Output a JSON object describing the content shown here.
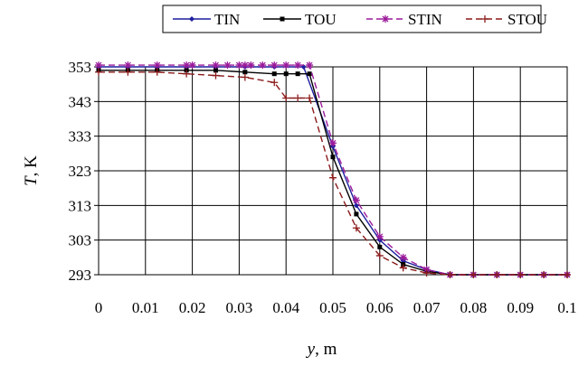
{
  "chart_data": {
    "type": "line",
    "title": "",
    "xlabel": {
      "var": "y",
      "unit": ", m"
    },
    "ylabel": {
      "var": "T",
      "unit": ", K"
    },
    "xlim": [
      0,
      0.1
    ],
    "ylim": [
      293,
      353
    ],
    "x_ticks": [
      0,
      0.01,
      0.02,
      0.03,
      0.04,
      0.05,
      0.06,
      0.07,
      0.08,
      0.09,
      0.1
    ],
    "x_tick_labels": [
      "0",
      "0.01",
      "0.02",
      "0.03",
      "0.04",
      "0.05",
      "0.06",
      "0.07",
      "0.08",
      "0.09",
      "0.1"
    ],
    "y_ticks": [
      293,
      303,
      313,
      323,
      333,
      343,
      353
    ],
    "y_tick_labels": [
      "293",
      "303",
      "313",
      "323",
      "333",
      "343",
      "353"
    ],
    "grid": true,
    "legend_position": "top",
    "series": [
      {
        "name": "TIN",
        "color": "#1f1f9e",
        "dash": "solid",
        "marker": "diamond",
        "x": [
          0,
          0.00625,
          0.0125,
          0.01875,
          0.025,
          0.03125,
          0.0375,
          0.04375,
          0.05,
          0.055,
          0.06,
          0.065,
          0.07,
          0.075,
          0.08,
          0.085,
          0.09,
          0.095,
          0.1
        ],
        "y": [
          353,
          353,
          353,
          353,
          353,
          353,
          353,
          353,
          330,
          313,
          303,
          297,
          294.5,
          293,
          293,
          293,
          293,
          293,
          293
        ]
      },
      {
        "name": "TOU",
        "color": "#000000",
        "dash": "solid",
        "marker": "square",
        "x": [
          0,
          0.00625,
          0.0125,
          0.01875,
          0.025,
          0.03125,
          0.0375,
          0.04,
          0.0425,
          0.045,
          0.05,
          0.055,
          0.06,
          0.065,
          0.07,
          0.075,
          0.08,
          0.085,
          0.09,
          0.095,
          0.1
        ],
        "y": [
          352,
          352,
          352,
          352,
          352,
          351.5,
          351,
          351,
          351,
          351,
          327,
          310.5,
          301,
          296,
          294,
          293,
          293,
          293,
          293,
          293,
          293
        ]
      },
      {
        "name": "STIN",
        "color": "#9b1b9b",
        "dash": "dashed",
        "marker": "star",
        "x": [
          0,
          0.00625,
          0.0125,
          0.01875,
          0.02,
          0.025,
          0.0275,
          0.03,
          0.03125,
          0.0325,
          0.035,
          0.0375,
          0.04,
          0.0425,
          0.045,
          0.05,
          0.055,
          0.06,
          0.065,
          0.07,
          0.075,
          0.08,
          0.085,
          0.09,
          0.095,
          0.1
        ],
        "y": [
          353.5,
          353.5,
          353.5,
          353.5,
          353.5,
          353.5,
          353.5,
          353.5,
          353.5,
          353.5,
          353.5,
          353.5,
          353.5,
          353.5,
          353.5,
          331,
          314.5,
          304,
          298,
          294.5,
          293,
          293,
          293,
          293,
          293,
          293
        ]
      },
      {
        "name": "STOU",
        "color": "#8b1a1a",
        "dash": "dashed",
        "marker": "plus",
        "x": [
          0,
          0.00625,
          0.0125,
          0.01875,
          0.025,
          0.03125,
          0.0375,
          0.04,
          0.0425,
          0.045,
          0.05,
          0.055,
          0.06,
          0.065,
          0.07,
          0.075,
          0.08,
          0.085,
          0.09,
          0.095,
          0.1
        ],
        "y": [
          351.5,
          351.5,
          351.5,
          351,
          350.5,
          350,
          348.5,
          344,
          344,
          344,
          321,
          306.5,
          298.5,
          295,
          293.5,
          293,
          293,
          293,
          293,
          293,
          293
        ]
      }
    ]
  }
}
